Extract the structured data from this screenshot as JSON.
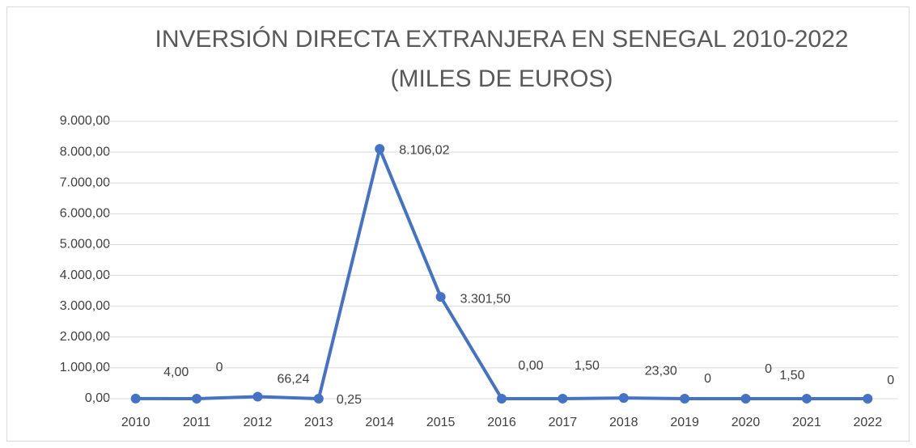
{
  "chart_data": {
    "type": "line",
    "title": [
      "INVERSIÓN DIRECTA EXTRANJERA EN SENEGAL 2010-2022",
      "(MILES DE EUROS)"
    ],
    "categories": [
      "2010",
      "2011",
      "2012",
      "2013",
      "2014",
      "2015",
      "2016",
      "2017",
      "2018",
      "2019",
      "2020",
      "2021",
      "2022"
    ],
    "values": [
      4.0,
      0,
      66.24,
      0.25,
      8106.02,
      3301.5,
      0.0,
      1.5,
      23.3,
      0,
      0,
      1.5,
      0
    ],
    "value_labels": [
      "4,00",
      "0",
      "66,24",
      "0,25",
      "8.106,02",
      "3.301,50",
      "0,00",
      "1,50",
      "23,30",
      "0",
      "0",
      "1,50",
      "0"
    ],
    "color": "#4472c4",
    "ylim": [
      0,
      9000
    ],
    "yticks": [
      {
        "value": 0,
        "label": "0,00"
      },
      {
        "value": 1000,
        "label": "1.000,00"
      },
      {
        "value": 2000,
        "label": "2.000,00"
      },
      {
        "value": 3000,
        "label": "3.000,00"
      },
      {
        "value": 4000,
        "label": "4.000,00"
      },
      {
        "value": 5000,
        "label": "5.000,00"
      },
      {
        "value": 6000,
        "label": "6.000,00"
      },
      {
        "value": 7000,
        "label": "7.000,00"
      },
      {
        "value": 8000,
        "label": "8.000,00"
      },
      {
        "value": 9000,
        "label": "9.000,00"
      }
    ],
    "grid": true
  }
}
